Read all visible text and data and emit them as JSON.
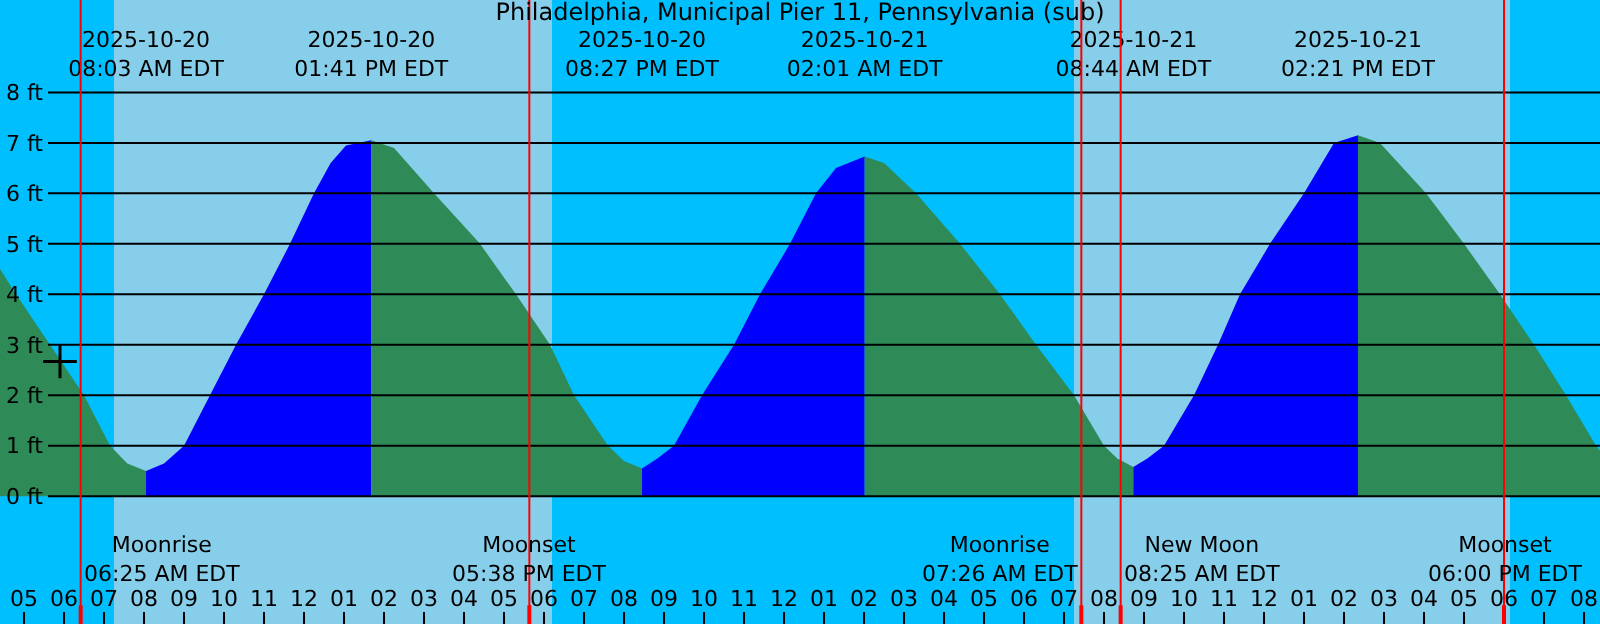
{
  "chart_data": {
    "type": "area",
    "title": "Philadelphia, Municipal Pier 11, Pennsylvania (sub)",
    "xlim": [
      "2025-10-20T04:24",
      "2025-10-21T20:24"
    ],
    "ylim": [
      -2.53,
      9.83
    ],
    "yticks": [
      {
        "value": 0,
        "label": "0 ft"
      },
      {
        "value": 1,
        "label": "1 ft"
      },
      {
        "value": 2,
        "label": "2 ft"
      },
      {
        "value": 3,
        "label": "3 ft"
      },
      {
        "value": 4,
        "label": "4 ft"
      },
      {
        "value": 5,
        "label": "5 ft"
      },
      {
        "value": 6,
        "label": "6 ft"
      },
      {
        "value": 7,
        "label": "7 ft"
      },
      {
        "value": 8,
        "label": "8 ft"
      }
    ],
    "xticks": [
      {
        "value": "2025-10-20T05:00",
        "label": "05"
      },
      {
        "value": "2025-10-20T06:00",
        "label": "06"
      },
      {
        "value": "2025-10-20T07:00",
        "label": "07"
      },
      {
        "value": "2025-10-20T08:00",
        "label": "08"
      },
      {
        "value": "2025-10-20T09:00",
        "label": "09"
      },
      {
        "value": "2025-10-20T10:00",
        "label": "10"
      },
      {
        "value": "2025-10-20T11:00",
        "label": "11"
      },
      {
        "value": "2025-10-20T12:00",
        "label": "12"
      },
      {
        "value": "2025-10-20T13:00",
        "label": "01"
      },
      {
        "value": "2025-10-20T14:00",
        "label": "02"
      },
      {
        "value": "2025-10-20T15:00",
        "label": "03"
      },
      {
        "value": "2025-10-20T16:00",
        "label": "04"
      },
      {
        "value": "2025-10-20T17:00",
        "label": "05"
      },
      {
        "value": "2025-10-20T18:00",
        "label": "06"
      },
      {
        "value": "2025-10-20T19:00",
        "label": "07"
      },
      {
        "value": "2025-10-20T20:00",
        "label": "08"
      },
      {
        "value": "2025-10-20T21:00",
        "label": "09"
      },
      {
        "value": "2025-10-20T22:00",
        "label": "10"
      },
      {
        "value": "2025-10-20T23:00",
        "label": "11"
      },
      {
        "value": "2025-10-21T00:00",
        "label": "12"
      },
      {
        "value": "2025-10-21T01:00",
        "label": "01"
      },
      {
        "value": "2025-10-21T02:00",
        "label": "02"
      },
      {
        "value": "2025-10-21T03:00",
        "label": "03"
      },
      {
        "value": "2025-10-21T04:00",
        "label": "04"
      },
      {
        "value": "2025-10-21T05:00",
        "label": "05"
      },
      {
        "value": "2025-10-21T06:00",
        "label": "06"
      },
      {
        "value": "2025-10-21T07:00",
        "label": "07"
      },
      {
        "value": "2025-10-21T08:00",
        "label": "08"
      },
      {
        "value": "2025-10-21T09:00",
        "label": "09"
      },
      {
        "value": "2025-10-21T10:00",
        "label": "10"
      },
      {
        "value": "2025-10-21T11:00",
        "label": "11"
      },
      {
        "value": "2025-10-21T12:00",
        "label": "12"
      },
      {
        "value": "2025-10-21T13:00",
        "label": "01"
      },
      {
        "value": "2025-10-21T14:00",
        "label": "02"
      },
      {
        "value": "2025-10-21T15:00",
        "label": "03"
      },
      {
        "value": "2025-10-21T16:00",
        "label": "04"
      },
      {
        "value": "2025-10-21T17:00",
        "label": "05"
      },
      {
        "value": "2025-10-21T18:00",
        "label": "06"
      },
      {
        "value": "2025-10-21T19:00",
        "label": "07"
      },
      {
        "value": "2025-10-21T20:00",
        "label": "08"
      }
    ],
    "grid": "y",
    "bands": [
      {
        "axis": "x",
        "from": "2025-10-20T04:24",
        "to": "2025-10-20T07:15",
        "color": "#00bfff"
      },
      {
        "axis": "x",
        "from": "2025-10-20T07:15",
        "to": "2025-10-20T18:12",
        "color": "#87ceeb"
      },
      {
        "axis": "x",
        "from": "2025-10-20T18:12",
        "to": "2025-10-21T07:15",
        "color": "#00bfff"
      },
      {
        "axis": "x",
        "from": "2025-10-21T07:15",
        "to": "2025-10-21T18:09",
        "color": "#87ceeb"
      },
      {
        "axis": "x",
        "from": "2025-10-21T18:09",
        "to": "2025-10-21T20:24",
        "color": "#00bfff"
      }
    ],
    "series": [
      {
        "color": "#2e8b57",
        "x": [
          "2025-10-20T04:24",
          "2025-10-20T04:48",
          "2025-10-20T05:39",
          "2025-10-20T06:30",
          "2025-10-20T07:09",
          "2025-10-20T07:35",
          "2025-10-20T08:03"
        ],
        "values": [
          4.5,
          4.0,
          3.0,
          2.0,
          1.0,
          0.65,
          0.5
        ]
      },
      {
        "color": "#0000ff",
        "x": [
          "2025-10-20T08:03",
          "2025-10-20T08:30",
          "2025-10-20T09:00",
          "2025-10-20T09:39",
          "2025-10-20T10:18",
          "2025-10-20T11:00",
          "2025-10-20T11:39",
          "2025-10-20T12:15",
          "2025-10-20T12:40",
          "2025-10-20T13:03",
          "2025-10-20T13:41"
        ],
        "values": [
          0.5,
          0.65,
          1.0,
          2.0,
          3.0,
          4.0,
          5.0,
          6.0,
          6.6,
          6.95,
          7.05
        ]
      },
      {
        "color": "#2e8b57",
        "x": [
          "2025-10-20T13:41",
          "2025-10-20T14:15",
          "2025-10-20T15:15",
          "2025-10-20T16:24",
          "2025-10-20T17:18",
          "2025-10-20T18:09",
          "2025-10-20T18:45",
          "2025-10-20T19:36",
          "2025-10-20T20:00",
          "2025-10-20T20:27"
        ],
        "values": [
          7.05,
          6.9,
          6.0,
          5.0,
          4.0,
          3.0,
          2.0,
          1.0,
          0.7,
          0.55
        ]
      },
      {
        "color": "#0000ff",
        "x": [
          "2025-10-20T20:27",
          "2025-10-20T20:50",
          "2025-10-20T21:15",
          "2025-10-20T21:57",
          "2025-10-20T22:45",
          "2025-10-20T23:24",
          "2025-10-21T00:09",
          "2025-10-21T00:48",
          "2025-10-21T01:18",
          "2025-10-21T02:01"
        ],
        "values": [
          0.55,
          0.75,
          1.0,
          2.0,
          3.0,
          4.0,
          5.0,
          6.0,
          6.5,
          6.73
        ]
      },
      {
        "color": "#2e8b57",
        "x": [
          "2025-10-21T02:01",
          "2025-10-21T02:30",
          "2025-10-21T03:18",
          "2025-10-21T04:24",
          "2025-10-21T05:24",
          "2025-10-21T06:18",
          "2025-10-21T07:15",
          "2025-10-21T08:00",
          "2025-10-21T08:20",
          "2025-10-21T08:44"
        ],
        "values": [
          6.73,
          6.6,
          6.0,
          5.0,
          4.0,
          3.0,
          2.0,
          1.0,
          0.75,
          0.58
        ]
      },
      {
        "color": "#0000ff",
        "x": [
          "2025-10-21T08:44",
          "2025-10-21T09:05",
          "2025-10-21T09:30",
          "2025-10-21T10:15",
          "2025-10-21T10:51",
          "2025-10-21T11:24",
          "2025-10-21T12:09",
          "2025-10-21T13:00",
          "2025-10-21T13:45",
          "2025-10-21T14:21"
        ],
        "values": [
          0.58,
          0.75,
          1.0,
          2.0,
          3.0,
          4.0,
          5.0,
          6.0,
          7.0,
          7.15
        ]
      },
      {
        "color": "#2e8b57",
        "x": [
          "2025-10-21T14:21",
          "2025-10-21T14:54",
          "2025-10-21T16:03",
          "2025-10-21T17:00",
          "2025-10-21T17:54",
          "2025-10-21T18:45",
          "2025-10-21T19:33",
          "2025-10-21T20:18",
          "2025-10-21T20:24"
        ],
        "values": [
          7.15,
          7.0,
          6.0,
          5.0,
          4.0,
          3.0,
          2.0,
          1.0,
          0.9
        ]
      },
      {
        "type": "scatter",
        "marker": "cross",
        "color": "#000000",
        "x": [
          "2025-10-20T05:54"
        ],
        "values": [
          2.67
        ]
      }
    ],
    "x2lim": [
      "2025-10-20T04:24",
      "2025-10-21T20:24"
    ],
    "x2ticks": [
      {
        "value": "2025-10-20T08:03",
        "label": "2025-10-20\n08:03 AM EDT"
      },
      {
        "value": "2025-10-20T13:41",
        "label": "2025-10-20\n01:41 PM EDT"
      },
      {
        "value": "2025-10-20T20:27",
        "label": "2025-10-20\n08:27 PM EDT"
      },
      {
        "value": "2025-10-21T02:01",
        "label": "2025-10-21\n02:01 AM EDT"
      },
      {
        "value": "2025-10-21T08:44",
        "label": "2025-10-21\n08:44 AM EDT"
      },
      {
        "value": "2025-10-21T14:21",
        "label": "2025-10-21\n02:21 PM EDT"
      }
    ],
    "ref_lines": [
      {
        "axis": "x",
        "value": "2025-10-20T06:25",
        "label": "Moonrise\n06:25 AM EDT",
        "color": "#ff0000"
      },
      {
        "axis": "x",
        "value": "2025-10-20T17:38",
        "label": "Moonset\n05:38 PM EDT",
        "color": "#ff0000"
      },
      {
        "axis": "x",
        "value": "2025-10-21T07:26",
        "label": "Moonrise\n07:26 AM EDT",
        "color": "#ff0000"
      },
      {
        "axis": "x",
        "value": "2025-10-21T08:25",
        "label": "New Moon\n08:25 AM EDT",
        "color": "#ff0000"
      },
      {
        "axis": "x",
        "value": "2025-10-21T18:00",
        "label": "Moonset\n06:00 PM EDT",
        "color": "#ff0000"
      }
    ]
  }
}
